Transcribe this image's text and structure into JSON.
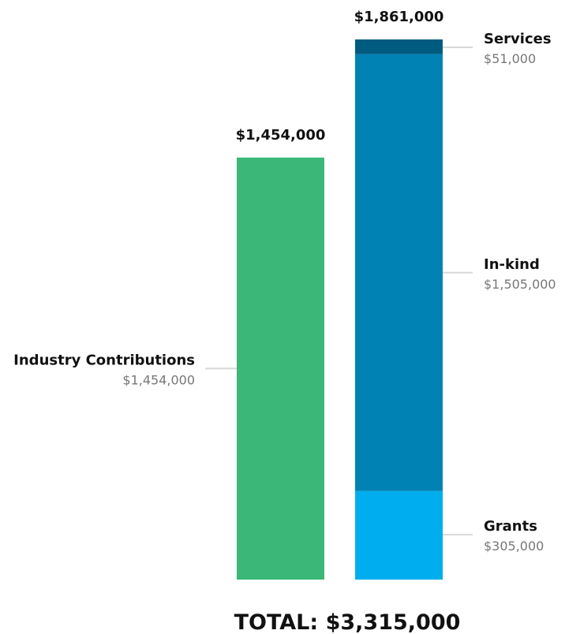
{
  "chart_data": {
    "type": "bar",
    "stacked": true,
    "ylim": [
      0,
      1861000
    ],
    "bars": [
      {
        "total_label": "$1,454,000",
        "total": 1454000,
        "segments": [
          {
            "name": "Industry Contributions",
            "value": 1454000,
            "value_label": "$1,454,000",
            "color": "#3BB878",
            "label_side": "left"
          }
        ]
      },
      {
        "total_label": "$1,861,000",
        "total": 1861000,
        "segments": [
          {
            "name": "Grants",
            "value": 305000,
            "value_label": "$305,000",
            "color": "#00AEEF",
            "label_side": "right"
          },
          {
            "name": "In-kind",
            "value": 1505000,
            "value_label": "$1,505,000",
            "color": "#0082B5",
            "label_side": "right"
          },
          {
            "name": "Services",
            "value": 51000,
            "value_label": "$51,000",
            "color": "#005B81",
            "label_side": "right"
          }
        ]
      }
    ],
    "grand_total_label": "TOTAL: $3,315,000",
    "grid": false,
    "legend": "none"
  }
}
